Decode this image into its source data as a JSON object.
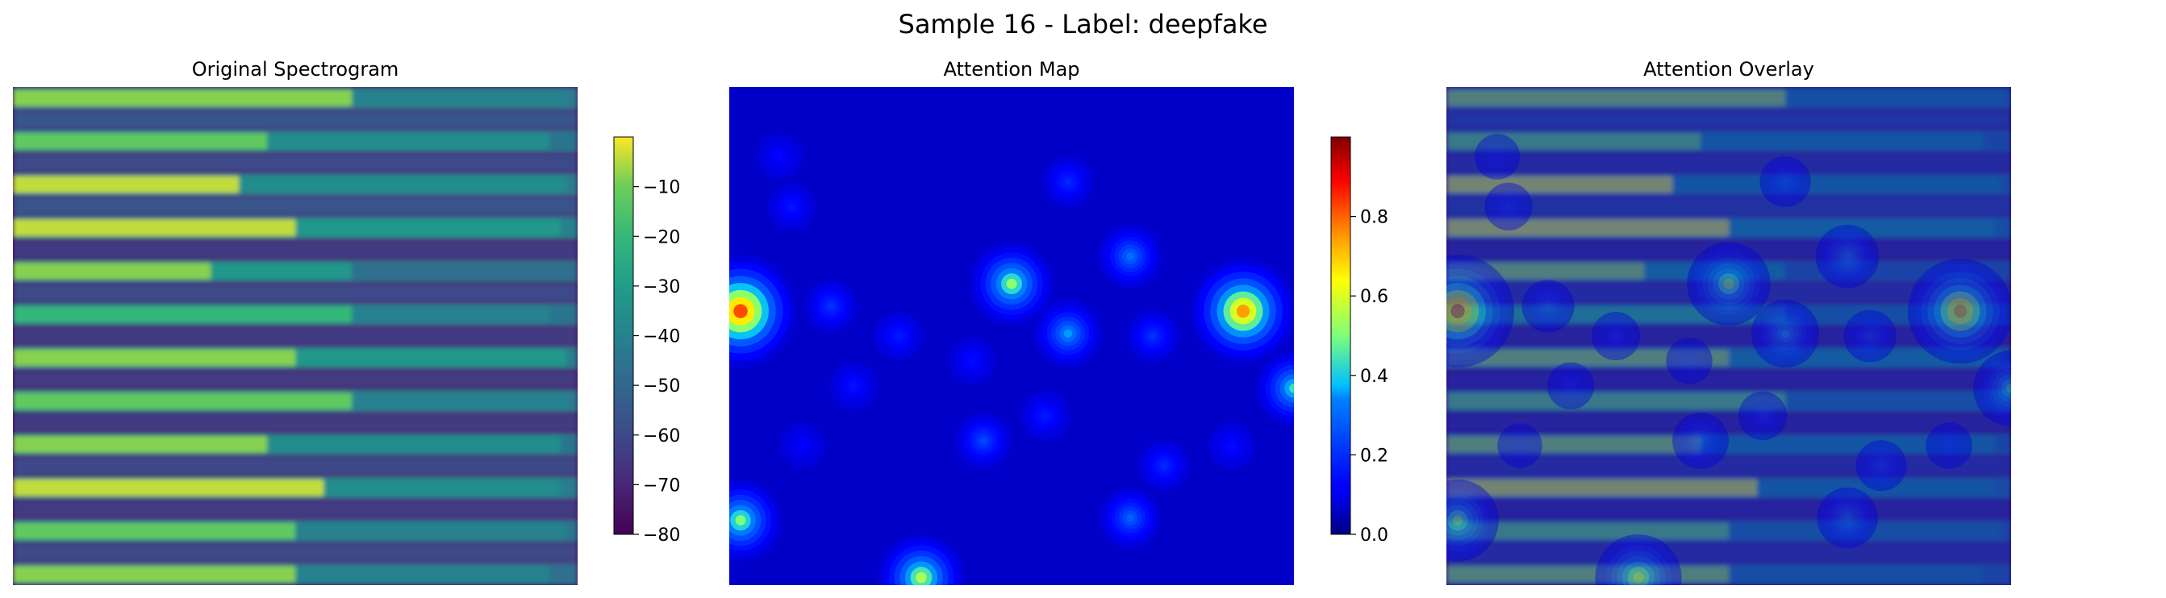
{
  "figure": {
    "suptitle": "Sample 16 - Label: deepfake"
  },
  "chart_data": [
    {
      "type": "heatmap",
      "title": "Original Spectrogram",
      "colormap": "viridis",
      "axes_visible": false,
      "grid": false,
      "colorbar": {
        "range": [
          -80,
          0
        ],
        "ticks": [
          -80,
          -70,
          -60,
          -50,
          -40,
          -30,
          -20,
          -10
        ],
        "tick_labels": [
          "−80",
          "−70",
          "−60",
          "−50",
          "−40",
          "−30",
          "−20",
          "−10"
        ]
      },
      "rows": [
        {
          "level": 0.85,
          "segments": [
            [
              0.0,
              0.6,
              0.9
            ],
            [
              0.6,
              0.98,
              0.5
            ]
          ]
        },
        {
          "level": 0.25,
          "segments": [
            [
              0.0,
              1.0,
              0.3
            ]
          ]
        },
        {
          "level": 0.8,
          "segments": [
            [
              0.0,
              0.45,
              0.85
            ],
            [
              0.45,
              0.95,
              0.55
            ]
          ]
        },
        {
          "level": 0.2,
          "segments": [
            [
              0.0,
              1.0,
              0.25
            ]
          ]
        },
        {
          "level": 0.85,
          "segments": [
            [
              0.0,
              0.4,
              0.95
            ],
            [
              0.4,
              0.98,
              0.55
            ]
          ]
        },
        {
          "level": 0.25,
          "segments": [
            [
              0.0,
              1.0,
              0.3
            ]
          ]
        },
        {
          "level": 0.9,
          "segments": [
            [
              0.0,
              0.5,
              0.95
            ],
            [
              0.5,
              0.97,
              0.6
            ]
          ]
        },
        {
          "level": 0.15,
          "segments": [
            [
              0.0,
              1.0,
              0.2
            ]
          ]
        },
        {
          "level": 0.75,
          "segments": [
            [
              0.0,
              0.35,
              0.9
            ],
            [
              0.35,
              0.6,
              0.6
            ]
          ]
        },
        {
          "level": 0.2,
          "segments": [
            [
              0.0,
              1.0,
              0.25
            ]
          ]
        },
        {
          "level": 0.8,
          "segments": [
            [
              0.0,
              0.6,
              0.75
            ],
            [
              0.6,
              0.95,
              0.5
            ]
          ]
        },
        {
          "level": 0.2,
          "segments": [
            [
              0.0,
              1.0,
              0.2
            ]
          ]
        },
        {
          "level": 0.85,
          "segments": [
            [
              0.0,
              0.5,
              0.9
            ],
            [
              0.5,
              0.98,
              0.6
            ]
          ]
        },
        {
          "level": 0.15,
          "segments": [
            [
              0.0,
              1.0,
              0.2
            ]
          ]
        },
        {
          "level": 0.85,
          "segments": [
            [
              0.0,
              0.6,
              0.85
            ],
            [
              0.6,
              0.98,
              0.5
            ]
          ]
        },
        {
          "level": 0.15,
          "segments": [
            [
              0.0,
              1.0,
              0.2
            ]
          ]
        },
        {
          "level": 0.8,
          "segments": [
            [
              0.0,
              0.45,
              0.9
            ],
            [
              0.45,
              0.97,
              0.55
            ]
          ]
        },
        {
          "level": 0.2,
          "segments": [
            [
              0.0,
              1.0,
              0.25
            ]
          ]
        },
        {
          "level": 0.85,
          "segments": [
            [
              0.0,
              0.55,
              0.95
            ],
            [
              0.55,
              0.97,
              0.55
            ]
          ]
        },
        {
          "level": 0.2,
          "segments": [
            [
              0.0,
              1.0,
              0.2
            ]
          ]
        },
        {
          "level": 0.8,
          "segments": [
            [
              0.0,
              0.5,
              0.85
            ],
            [
              0.5,
              0.98,
              0.5
            ]
          ]
        },
        {
          "level": 0.25,
          "segments": [
            [
              0.0,
              1.0,
              0.25
            ]
          ]
        },
        {
          "level": 0.75,
          "segments": [
            [
              0.0,
              0.5,
              0.9
            ],
            [
              0.5,
              0.95,
              0.5
            ]
          ]
        }
      ]
    },
    {
      "type": "heatmap",
      "title": "Attention Map",
      "colormap": "jet",
      "axes_visible": false,
      "grid": false,
      "colorbar": {
        "range": [
          0,
          1
        ],
        "ticks": [
          0,
          0.2,
          0.4,
          0.6,
          0.8
        ],
        "tick_labels": [
          "0.0",
          "0.2",
          "0.4",
          "0.6",
          "0.8"
        ]
      },
      "base_value": 0.08,
      "peaks": [
        {
          "x": 0.02,
          "y": 0.45,
          "value": 1.0
        },
        {
          "x": 0.91,
          "y": 0.45,
          "value": 0.9
        },
        {
          "x": 0.5,
          "y": 0.395,
          "value": 0.62
        },
        {
          "x": 1.0,
          "y": 0.605,
          "value": 0.52
        },
        {
          "x": 0.34,
          "y": 0.985,
          "value": 0.66
        },
        {
          "x": 0.02,
          "y": 0.87,
          "value": 0.6
        },
        {
          "x": 0.6,
          "y": 0.495,
          "value": 0.42
        },
        {
          "x": 0.71,
          "y": 0.34,
          "value": 0.36
        },
        {
          "x": 0.71,
          "y": 0.865,
          "value": 0.33
        },
        {
          "x": 0.45,
          "y": 0.71,
          "value": 0.27
        },
        {
          "x": 0.6,
          "y": 0.19,
          "value": 0.2
        },
        {
          "x": 0.11,
          "y": 0.24,
          "value": 0.16
        },
        {
          "x": 0.75,
          "y": 0.5,
          "value": 0.22
        },
        {
          "x": 0.18,
          "y": 0.44,
          "value": 0.22
        },
        {
          "x": 0.3,
          "y": 0.5,
          "value": 0.17
        },
        {
          "x": 0.77,
          "y": 0.76,
          "value": 0.2
        },
        {
          "x": 0.09,
          "y": 0.14,
          "value": 0.13
        },
        {
          "x": 0.56,
          "y": 0.66,
          "value": 0.17
        },
        {
          "x": 0.22,
          "y": 0.6,
          "value": 0.15
        },
        {
          "x": 0.43,
          "y": 0.55,
          "value": 0.14
        },
        {
          "x": 0.89,
          "y": 0.72,
          "value": 0.14
        },
        {
          "x": 0.13,
          "y": 0.72,
          "value": 0.12
        }
      ]
    },
    {
      "type": "heatmap",
      "title": "Attention Overlay",
      "colormap": "viridis + jet overlay",
      "overlay_alpha": 0.4,
      "axes_visible": false,
      "grid": false
    }
  ]
}
